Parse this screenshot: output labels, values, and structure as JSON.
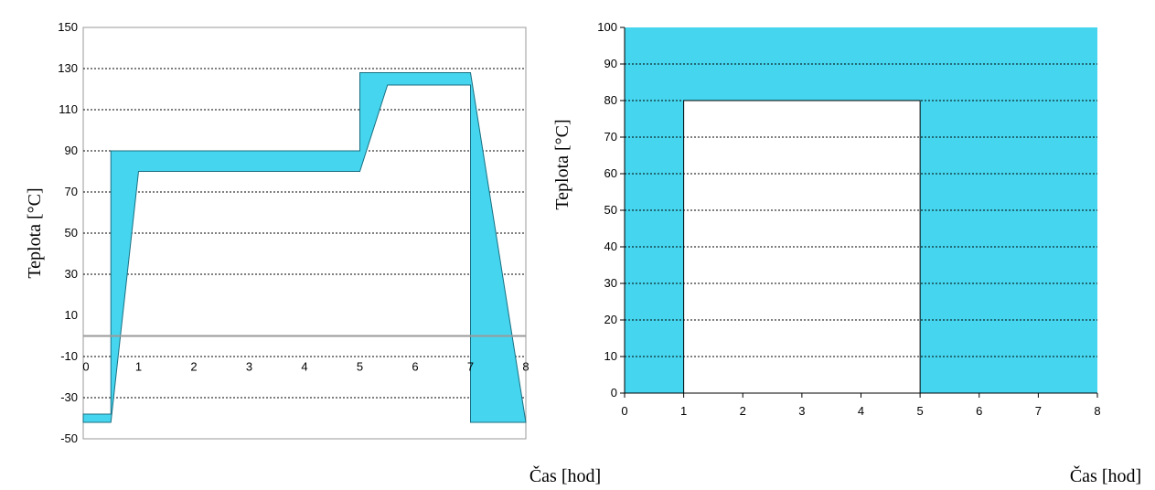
{
  "chart_data": [
    {
      "type": "area",
      "ylabel": "Teplota [°C]",
      "xlabel": "Čas [hod]",
      "x_ticks": [
        "0",
        "1",
        "2",
        "3",
        "4",
        "5",
        "6",
        "7",
        "8"
      ],
      "y_ticks": [
        "-50",
        "-30",
        "-10",
        "10",
        "30",
        "50",
        "70",
        "90",
        "110",
        "130",
        "150"
      ],
      "xlim": [
        0,
        8
      ],
      "ylim": [
        -50,
        150
      ],
      "grid": true,
      "fill_color": "#45d5ee",
      "zero_line": true,
      "series": [
        {
          "upper": [
            [
              0,
              -38
            ],
            [
              0.5,
              -38
            ],
            [
              0.5,
              90
            ],
            [
              5,
              90
            ],
            [
              5,
              128
            ],
            [
              7,
              128
            ],
            [
              8,
              -42
            ]
          ],
          "lower": [
            [
              0,
              -42
            ],
            [
              0.5,
              -42
            ],
            [
              1,
              80
            ],
            [
              5,
              80
            ],
            [
              5.5,
              122
            ],
            [
              7,
              122
            ],
            [
              7,
              -42
            ],
            [
              8,
              -42
            ]
          ]
        }
      ]
    },
    {
      "type": "area",
      "ylabel": "Teplota [°C]",
      "xlabel": "Čas [hod]",
      "x_ticks": [
        "0",
        "1",
        "2",
        "3",
        "4",
        "5",
        "6",
        "7",
        "8"
      ],
      "y_ticks": [
        "0",
        "10",
        "20",
        "30",
        "40",
        "50",
        "60",
        "70",
        "80",
        "90",
        "100"
      ],
      "xlim": [
        0,
        8
      ],
      "ylim": [
        0,
        100
      ],
      "grid": true,
      "fill_color": "#45d5ee",
      "white_window": {
        "x": [
          1,
          5
        ],
        "y": [
          0,
          80
        ]
      }
    }
  ]
}
